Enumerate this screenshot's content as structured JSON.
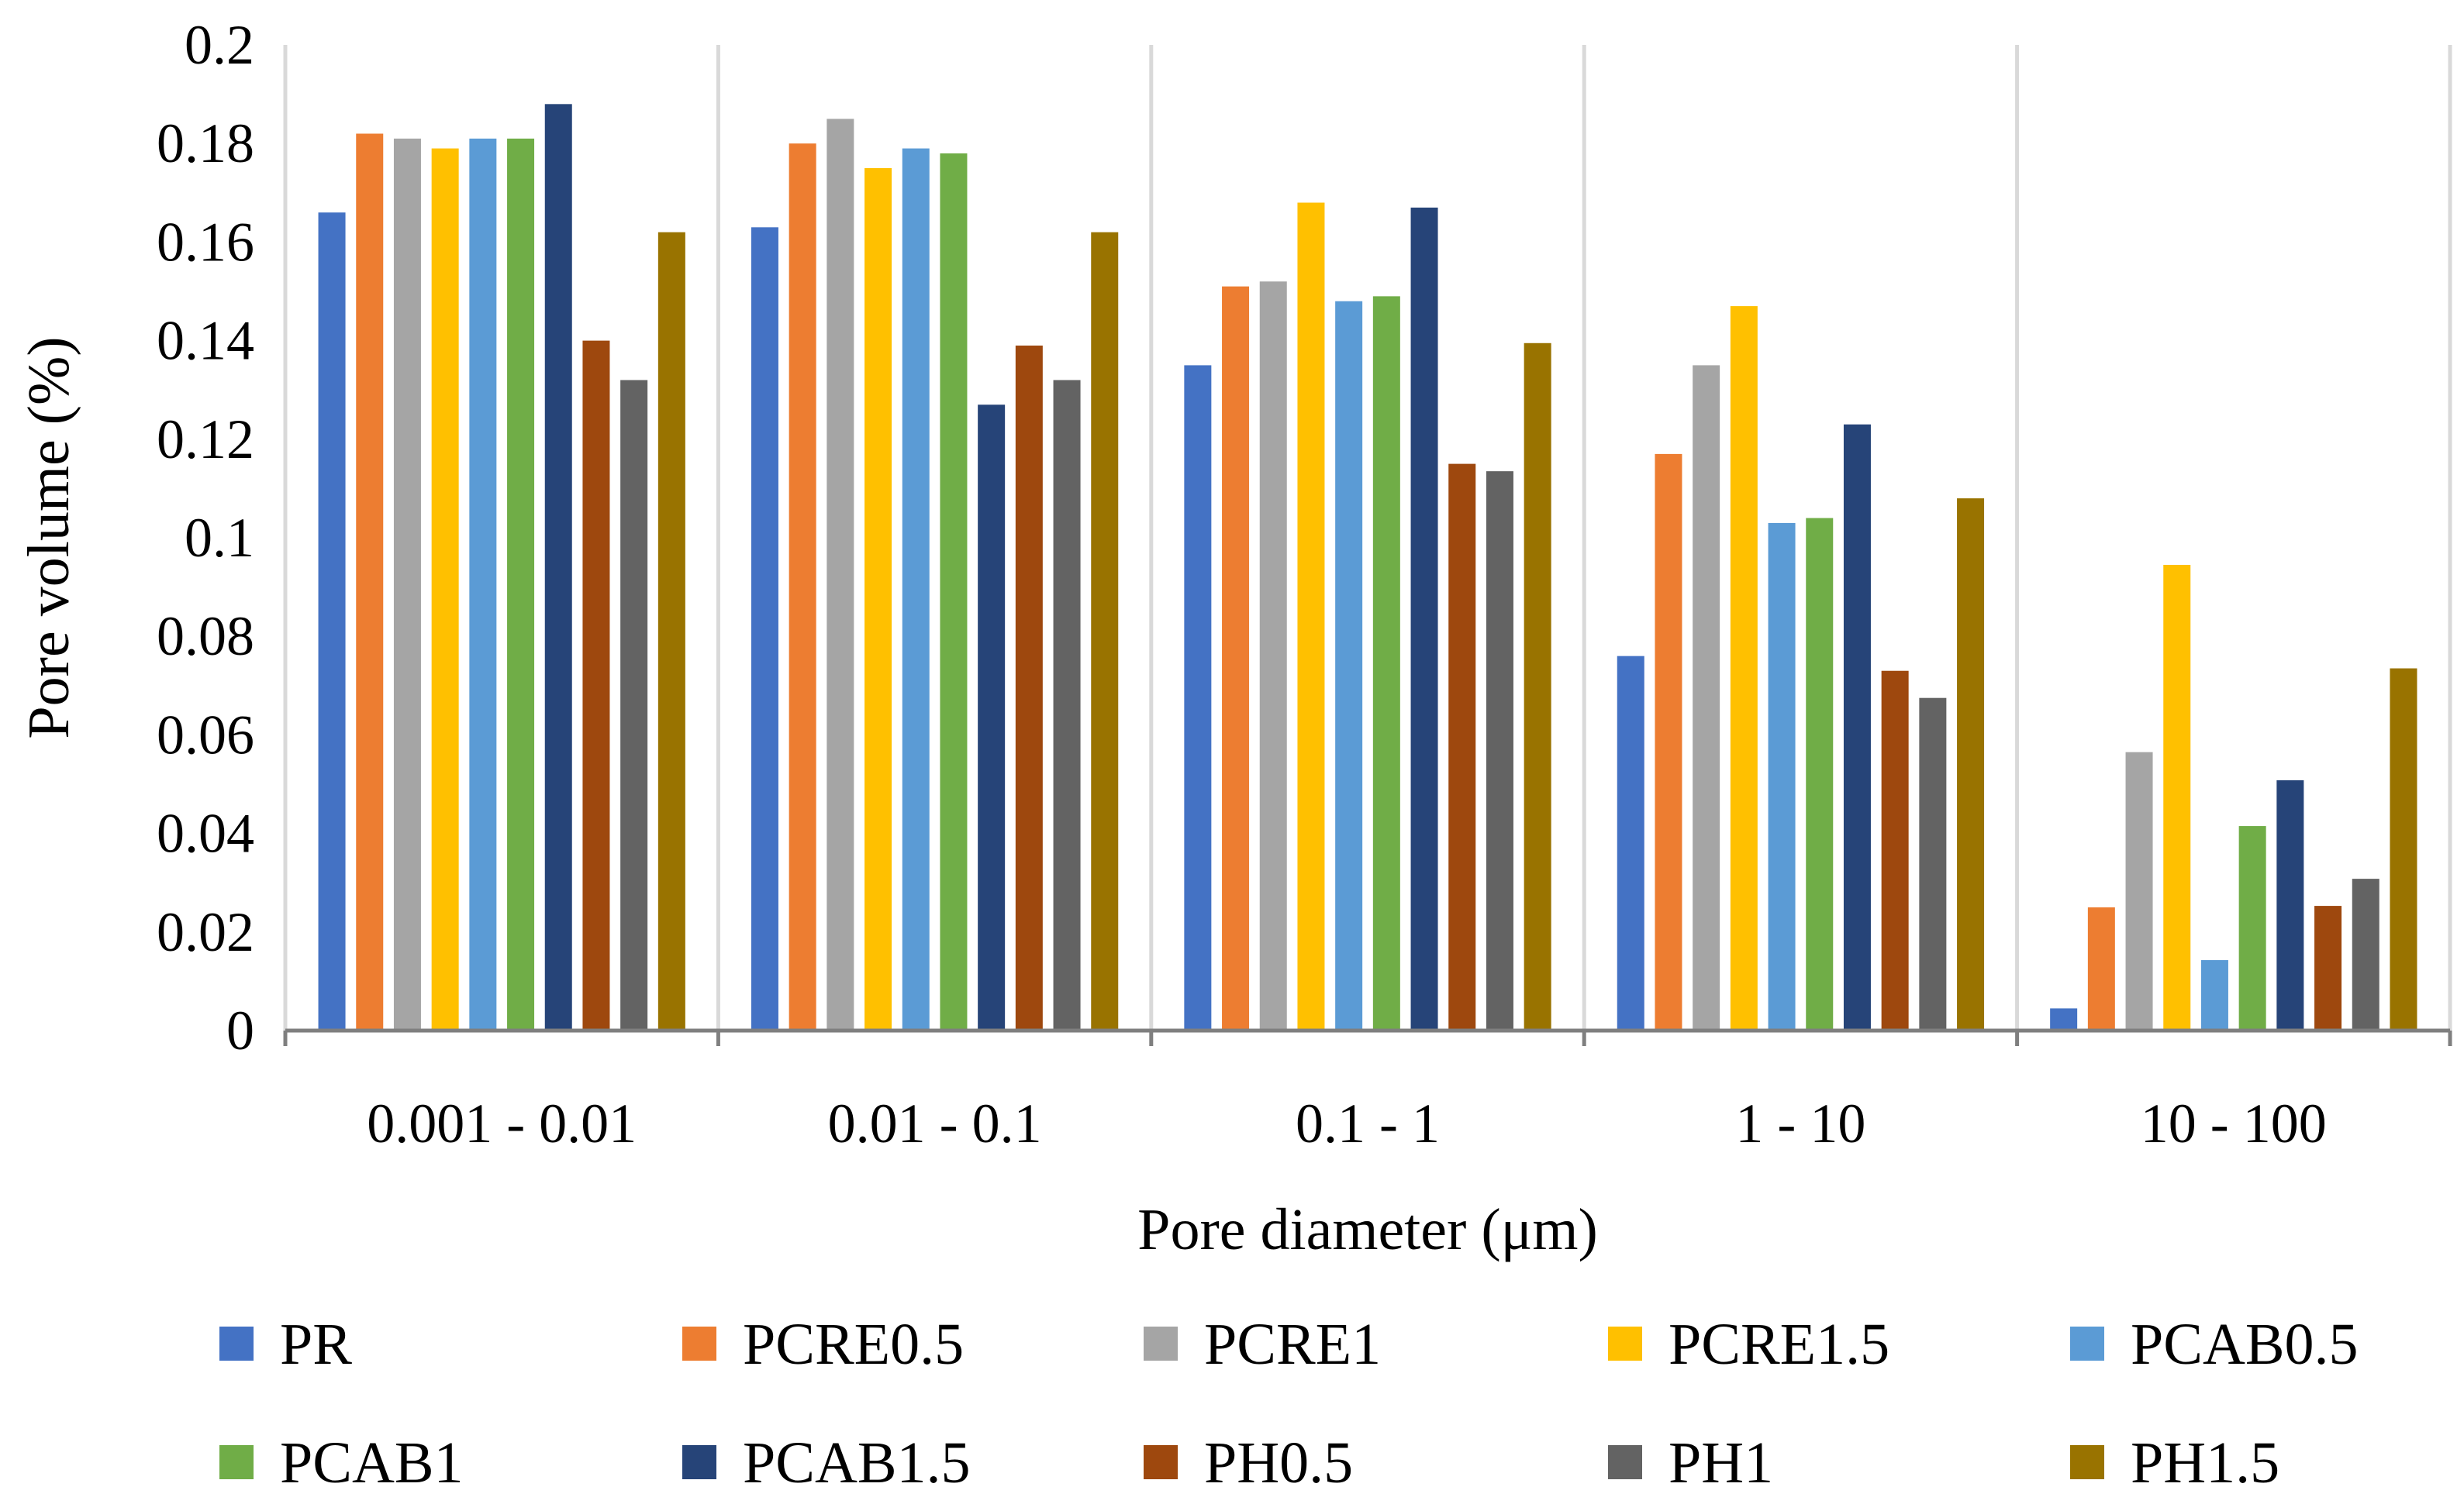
{
  "chart_data": {
    "type": "bar",
    "xlabel": "Pore diameter (μm)",
    "ylabel": "Pore volume (%)",
    "ylim": [
      0,
      0.2
    ],
    "yticks": [
      "0",
      "0.02",
      "0.04",
      "0.06",
      "0.08",
      "0.1",
      "0.12",
      "0.14",
      "0.16",
      "0.18",
      "0.2"
    ],
    "grid": "vertical lines between categories",
    "legend_position": "bottom",
    "categories": [
      "0.001 - 0.01",
      "0.01 - 0.1",
      "0.1 - 1",
      "1 - 10",
      "10 - 100"
    ],
    "series": [
      {
        "name": "PR",
        "color": "#4472C4",
        "values": [
          0.166,
          0.163,
          0.135,
          0.076,
          0.0045
        ]
      },
      {
        "name": "PCRE0.5",
        "color": "#ED7D31",
        "values": [
          0.182,
          0.18,
          0.151,
          0.117,
          0.025
        ]
      },
      {
        "name": "PCRE1",
        "color": "#A5A5A5",
        "values": [
          0.181,
          0.185,
          0.152,
          0.135,
          0.0565
        ]
      },
      {
        "name": "PCRE1.5",
        "color": "#FFC000",
        "values": [
          0.179,
          0.175,
          0.168,
          0.147,
          0.0945
        ]
      },
      {
        "name": "PCAB0.5",
        "color": "#5B9BD5",
        "values": [
          0.181,
          0.179,
          0.148,
          0.103,
          0.0143
        ]
      },
      {
        "name": "PCAB1",
        "color": "#70AD47",
        "values": [
          0.181,
          0.178,
          0.149,
          0.104,
          0.0415
        ]
      },
      {
        "name": "PCAB1.5",
        "color": "#264478",
        "values": [
          0.188,
          0.127,
          0.167,
          0.123,
          0.0508
        ]
      },
      {
        "name": "PH0.5",
        "color": "#9E480E",
        "values": [
          0.14,
          0.139,
          0.115,
          0.073,
          0.0253
        ]
      },
      {
        "name": "PH1",
        "color": "#636363",
        "values": [
          0.132,
          0.132,
          0.1135,
          0.0675,
          0.0308
        ]
      },
      {
        "name": "PH1.5",
        "color": "#997300",
        "values": [
          0.162,
          0.162,
          0.1395,
          0.108,
          0.0735
        ]
      }
    ]
  }
}
